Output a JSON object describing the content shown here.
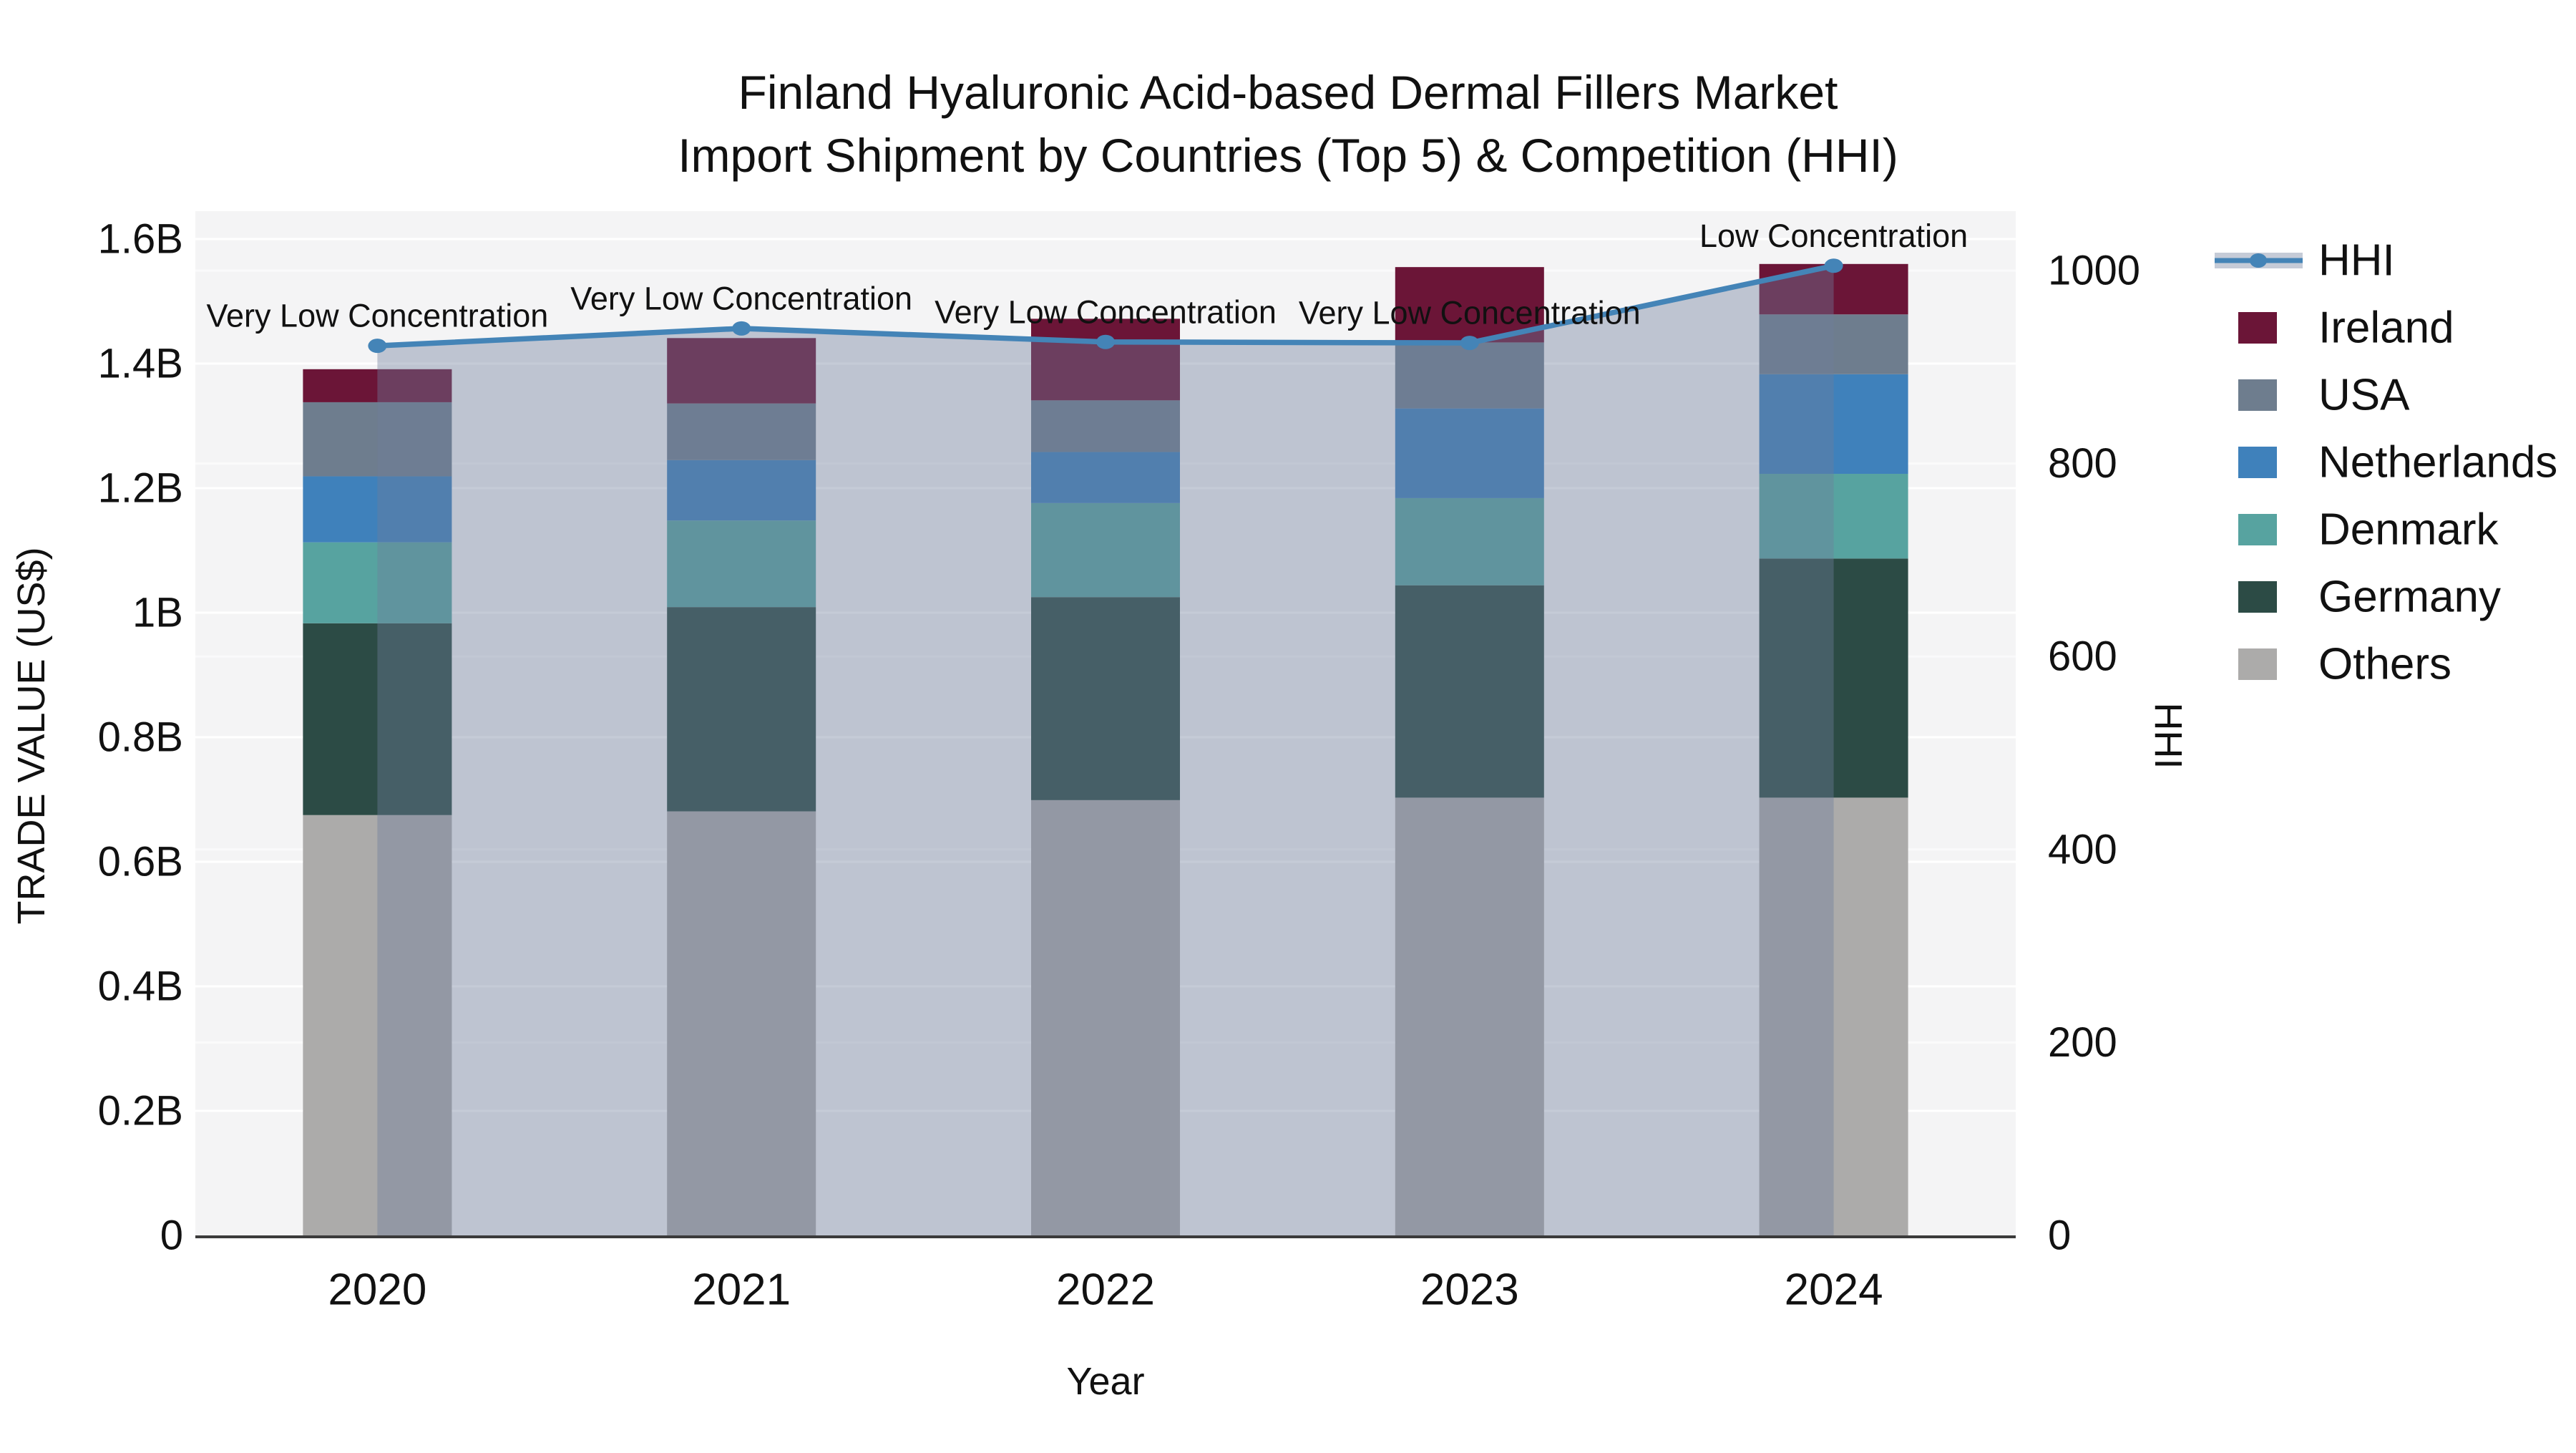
{
  "title": {
    "line1": "Finland Hyaluronic Acid-based Dermal Fillers Market",
    "line2": "Import Shipment by Countries (Top 5) & Competition (HHI)"
  },
  "chart_data": {
    "type": "bar",
    "subtype": "stacked-bars-with-hhi-line-and-area",
    "categories": [
      "2020",
      "2021",
      "2022",
      "2023",
      "2024"
    ],
    "value_unit": "billions of US$",
    "series": [
      {
        "name": "Others",
        "color": "#acabaa",
        "values": [
          0.675,
          0.681,
          0.699,
          0.703,
          0.703
        ]
      },
      {
        "name": "Germany",
        "color": "#2c4b45",
        "values": [
          0.308,
          0.328,
          0.326,
          0.341,
          0.384
        ]
      },
      {
        "name": "Denmark",
        "color": "#57a3a0",
        "values": [
          0.13,
          0.139,
          0.151,
          0.14,
          0.136
        ]
      },
      {
        "name": "Netherlands",
        "color": "#3f81bb",
        "values": [
          0.106,
          0.097,
          0.082,
          0.144,
          0.16
        ]
      },
      {
        "name": "USA",
        "color": "#6e7d8e",
        "values": [
          0.119,
          0.091,
          0.083,
          0.106,
          0.096
        ]
      },
      {
        "name": "Ireland",
        "color": "#6b1537",
        "values": [
          0.053,
          0.105,
          0.131,
          0.121,
          0.081
        ]
      }
    ],
    "bar_totals": [
      1.391,
      1.441,
      1.472,
      1.555,
      1.56
    ],
    "line_series": {
      "name": "HHI",
      "color": "#4484b7",
      "area_color": "#6d7d9a",
      "area_opacity": 0.4,
      "values": [
        922,
        940,
        926,
        925,
        1005
      ]
    },
    "point_annotations": [
      "Very Low Concentration",
      "Very Low Concentration",
      "Very Low Concentration",
      "Very Low Concentration",
      "Low Concentration"
    ],
    "xlabel": "Year",
    "ylabel_left": "TRADE VALUE (US$)",
    "ylabel_right": "HHI",
    "ylim_left": [
      0,
      1.6
    ],
    "ylim_right": [
      0,
      1060
    ],
    "yticks_left": [
      {
        "v": 0,
        "label": "0"
      },
      {
        "v": 0.2,
        "label": "0.2B"
      },
      {
        "v": 0.4,
        "label": "0.4B"
      },
      {
        "v": 0.6,
        "label": "0.6B"
      },
      {
        "v": 0.8,
        "label": "0.8B"
      },
      {
        "v": 1.0,
        "label": "1B"
      },
      {
        "v": 1.2,
        "label": "1.2B"
      },
      {
        "v": 1.4,
        "label": "1.4B"
      },
      {
        "v": 1.6,
        "label": "1.6B"
      }
    ],
    "yticks_right": [
      {
        "v": 0,
        "label": "0"
      },
      {
        "v": 200,
        "label": "200"
      },
      {
        "v": 400,
        "label": "400"
      },
      {
        "v": 600,
        "label": "600"
      },
      {
        "v": 800,
        "label": "800"
      },
      {
        "v": 1000,
        "label": "1000"
      }
    ],
    "legend_order": [
      "HHI",
      "Ireland",
      "USA",
      "Netherlands",
      "Denmark",
      "Germany",
      "Others"
    ],
    "grid": true,
    "legend_position": "right-outside",
    "plot_background": "#f4f4f5",
    "grid_color": "#ffffff",
    "axis_line_color": "#3b3b3b",
    "text_color": "#111111"
  }
}
